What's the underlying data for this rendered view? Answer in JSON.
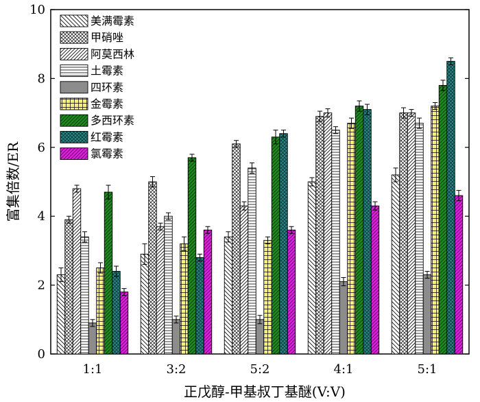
{
  "chart_data": {
    "type": "bar",
    "title": "",
    "xlabel": "正戊醇-甲基叔丁基醚(V:V)",
    "ylabel": "富集倍数/ER",
    "ylim": [
      0,
      10
    ],
    "yticks": [
      "0",
      "2",
      "4",
      "6",
      "8",
      "10"
    ],
    "categories": [
      "1:1",
      "3:2",
      "5:2",
      "4:1",
      "5:1"
    ],
    "legend_position": "top-left",
    "error_bars": true,
    "series": [
      {
        "name": "美满霉素",
        "pattern": "diag-back",
        "color": "#ffffff",
        "values": [
          2.3,
          2.9,
          3.4,
          5.0,
          5.2
        ],
        "errors": [
          0.2,
          0.3,
          0.15,
          0.12,
          0.2
        ]
      },
      {
        "name": "甲硝唑",
        "pattern": "crosshatch",
        "color": "#ffffff",
        "values": [
          3.9,
          5.0,
          6.1,
          6.9,
          7.0
        ],
        "errors": [
          0.1,
          0.15,
          0.1,
          0.15,
          0.15
        ]
      },
      {
        "name": "阿莫西林",
        "pattern": "diag-fwd",
        "color": "#ffffff",
        "values": [
          4.8,
          3.7,
          4.3,
          7.0,
          7.0
        ],
        "errors": [
          0.1,
          0.1,
          0.12,
          0.12,
          0.1
        ]
      },
      {
        "name": "土霉素",
        "pattern": "horizontal",
        "color": "#ffffff",
        "values": [
          3.4,
          4.0,
          5.4,
          6.5,
          6.7
        ],
        "errors": [
          0.15,
          0.1,
          0.15,
          0.1,
          0.15
        ]
      },
      {
        "name": "四环素",
        "pattern": "solid",
        "color": "#8c8c8c",
        "values": [
          0.9,
          1.0,
          1.0,
          2.1,
          2.3
        ],
        "errors": [
          0.1,
          0.1,
          0.12,
          0.12,
          0.1
        ]
      },
      {
        "name": "金霉素",
        "pattern": "grid",
        "color": "#f5f07a",
        "values": [
          2.5,
          3.2,
          3.3,
          6.7,
          7.2
        ],
        "errors": [
          0.15,
          0.2,
          0.1,
          0.15,
          0.1
        ]
      },
      {
        "name": "多西环素",
        "pattern": "diag-fwd-dark",
        "color": "#1e8c1e",
        "values": [
          4.7,
          5.7,
          6.3,
          7.2,
          7.8
        ],
        "errors": [
          0.2,
          0.1,
          0.2,
          0.15,
          0.15
        ]
      },
      {
        "name": "红霉素",
        "pattern": "crosshatch-dark",
        "color": "#2a8a8a",
        "values": [
          2.4,
          2.8,
          6.4,
          7.1,
          8.5
        ],
        "errors": [
          0.15,
          0.1,
          0.1,
          0.15,
          0.1
        ]
      },
      {
        "name": "氯霉素",
        "pattern": "diag-fwd-dark",
        "color": "#e020e0",
        "values": [
          1.8,
          3.6,
          3.6,
          4.3,
          4.6
        ],
        "errors": [
          0.1,
          0.1,
          0.1,
          0.12,
          0.15
        ]
      }
    ]
  }
}
